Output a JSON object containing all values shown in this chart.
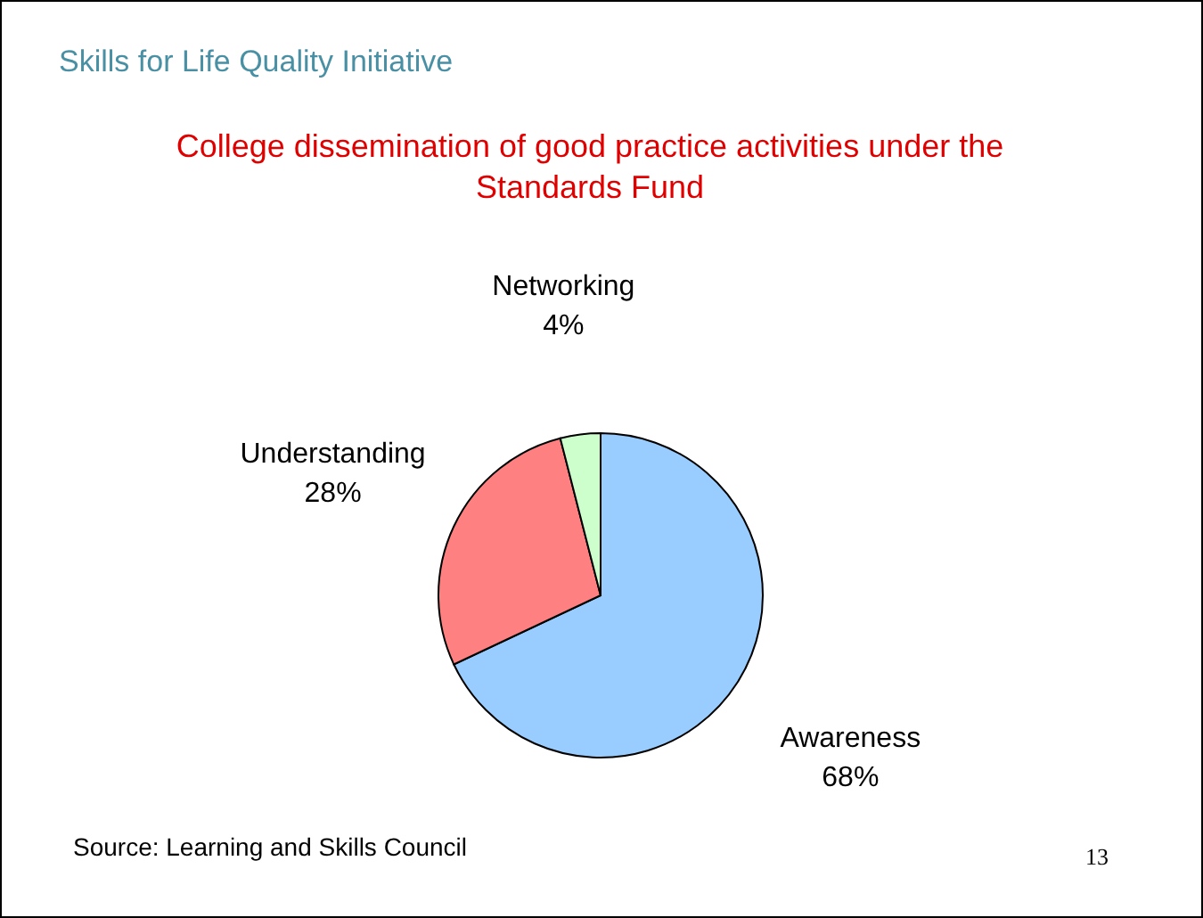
{
  "chart_data": {
    "type": "pie",
    "subtitle": "Skills for Life Quality Initiative",
    "title": "College dissemination of good practice activities under the Standards Fund",
    "categories": [
      "Awareness",
      "Understanding",
      "Networking"
    ],
    "values": [
      68,
      28,
      4
    ],
    "colors": [
      "#99ccff",
      "#ff8080",
      "#ccffcc"
    ],
    "value_labels": [
      "68%",
      "28%",
      "4%"
    ],
    "annotations": [
      "Source: Learning and Skills Council",
      "13"
    ]
  }
}
